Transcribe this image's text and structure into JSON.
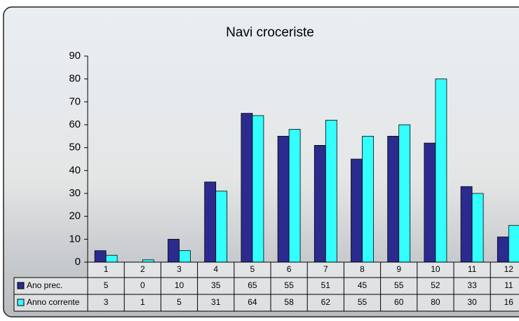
{
  "chart_data": {
    "type": "bar",
    "title": "Navi croceriste",
    "categories": [
      "1",
      "2",
      "3",
      "4",
      "5",
      "6",
      "7",
      "8",
      "9",
      "10",
      "11",
      "12"
    ],
    "series": [
      {
        "name": "Ano prec.",
        "color": "#2b2b8f",
        "values": [
          5,
          0,
          10,
          35,
          65,
          55,
          51,
          45,
          55,
          52,
          33,
          11
        ]
      },
      {
        "name": "Anno corrente",
        "color": "#33ffff",
        "values": [
          3,
          1,
          5,
          31,
          64,
          58,
          62,
          55,
          60,
          80,
          30,
          16
        ]
      }
    ],
    "ylim": [
      0,
      90
    ],
    "yticks": [
      0,
      10,
      20,
      30,
      40,
      50,
      60,
      70,
      80,
      90
    ],
    "grid": false
  }
}
